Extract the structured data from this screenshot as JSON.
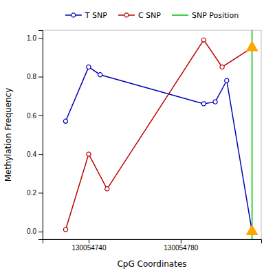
{
  "chart_data": {
    "type": "line",
    "xlabel": "CpG Coordinates",
    "ylabel": "Methylation Frequency",
    "series": [
      {
        "name": "T SNP",
        "color": "#0000BB",
        "marker": "circle",
        "line_style": "solid",
        "x": [
          130054730,
          130054740,
          130054745,
          130054790,
          130054795,
          130054800,
          130054811
        ],
        "values": [
          0.57,
          0.85,
          0.81,
          0.66,
          0.67,
          0.78,
          0.0
        ]
      },
      {
        "name": "C SNP",
        "color": "#BB0000",
        "marker": "circle",
        "line_style": "solid",
        "x": [
          130054730,
          130054740,
          130054748,
          130054790,
          130054798,
          130054811
        ],
        "values": [
          0.01,
          0.4,
          0.22,
          0.99,
          0.85,
          0.95
        ]
      },
      {
        "name": "SNP Position",
        "type": "vline",
        "color": "#00BB00",
        "line_style": "solid",
        "x": [
          130054811
        ]
      },
      {
        "type": "scatter",
        "color": "#FFA500",
        "marker": "triangle",
        "x": [
          130054811,
          130054811
        ],
        "values": [
          0.95,
          0.0
        ]
      }
    ],
    "xlim": [
      130054720,
      130054815
    ],
    "xticks": [
      130054740,
      130054780
    ],
    "ylim": [
      -0.04,
      1.04
    ],
    "yticks": [
      {
        "value": 0.0,
        "label": "0.0"
      },
      0.2,
      0.4,
      0.6,
      0.8,
      {
        "value": 1.0,
        "label": "1.0"
      }
    ],
    "grid": false,
    "legend": "top"
  }
}
